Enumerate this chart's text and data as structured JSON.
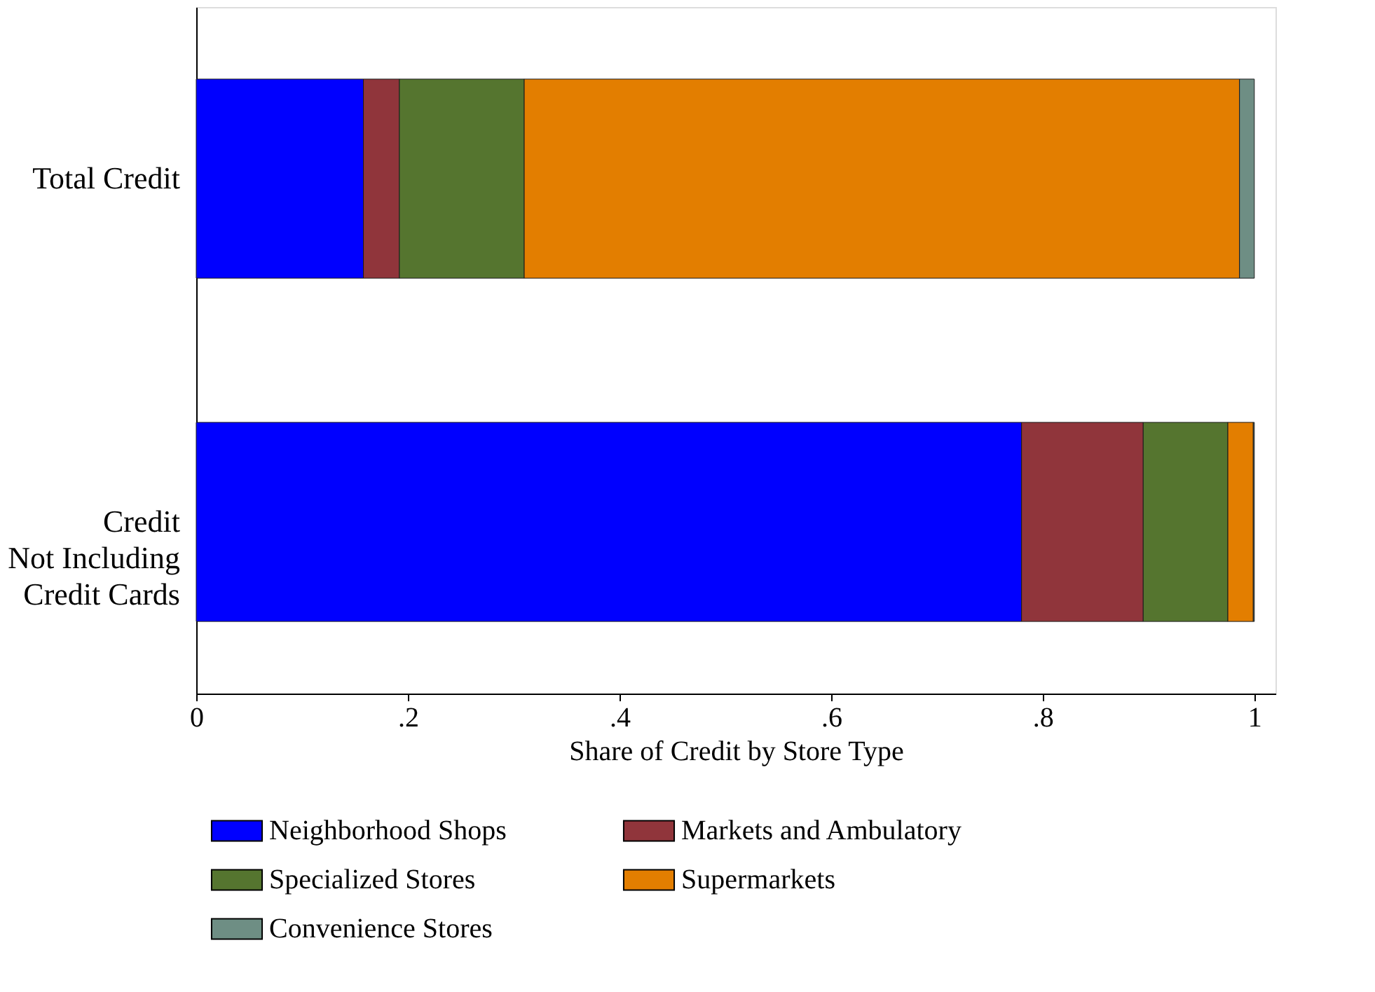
{
  "chart_data": {
    "type": "bar",
    "orientation": "horizontal",
    "stacked": true,
    "xlabel": "Share of Credit by Store Type",
    "categories": [
      "Total Credit",
      "Credit\nNot Including\nCredit Cards"
    ],
    "series": [
      {
        "name": "Neighborhood Shops",
        "color": "#0000ff",
        "values": [
          0.158,
          0.78
        ]
      },
      {
        "name": "Markets and Ambulatory",
        "color": "#90353b",
        "values": [
          0.034,
          0.115
        ]
      },
      {
        "name": "Specialized Stores",
        "color": "#55752f",
        "values": [
          0.118,
          0.08
        ]
      },
      {
        "name": "Supermarkets",
        "color": "#e37e00",
        "values": [
          0.676,
          0.024
        ]
      },
      {
        "name": "Convenience Stores",
        "color": "#6e8e84",
        "values": [
          0.014,
          0.001
        ]
      }
    ],
    "xlim": [
      0,
      1.02
    ],
    "xticks": [
      0,
      {
        "value": 0.2,
        "label": ".2"
      },
      {
        "value": 0.4,
        "label": ".4"
      },
      {
        "value": 0.6,
        "label": ".6"
      },
      {
        "value": 0.8,
        "label": ".8"
      },
      1
    ],
    "grid": false,
    "legend": "bottom"
  }
}
